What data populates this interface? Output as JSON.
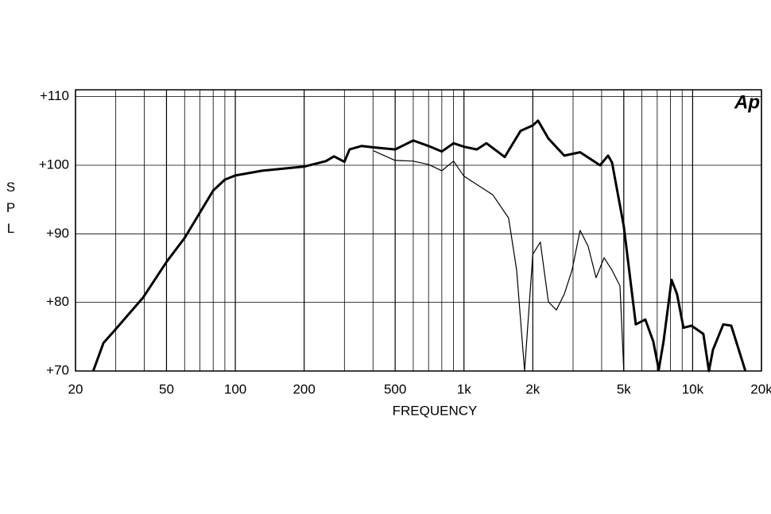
{
  "chart_data": {
    "type": "line",
    "xlabel": "FREQUENCY",
    "ylabel": "SPL",
    "logo": "Ap",
    "xscale": "log",
    "grid": true,
    "xlim": [
      20,
      20000
    ],
    "ylim": [
      70,
      111
    ],
    "xticks": [
      20,
      50,
      100,
      200,
      500,
      {
        "value": 1000,
        "label": "1k"
      },
      {
        "value": 2000,
        "label": "2k"
      },
      {
        "value": 5000,
        "label": "5k"
      },
      {
        "value": 10000,
        "label": "10k"
      },
      {
        "value": 20000,
        "label": "20k"
      }
    ],
    "minor_xticks": [
      30,
      40,
      60,
      70,
      80,
      90,
      300,
      400,
      600,
      700,
      800,
      900,
      3000,
      4000,
      6000,
      7000,
      8000,
      9000
    ],
    "yticks": [
      {
        "value": 70,
        "label": "+70"
      },
      {
        "value": 80,
        "label": "+80"
      },
      {
        "value": 90,
        "label": "+90"
      },
      {
        "value": 100,
        "label": "+100"
      },
      {
        "value": 110,
        "label": "+110"
      }
    ],
    "series": [
      {
        "color": "#000000",
        "width": 3,
        "x": [
          23.9,
          26.5,
          29.8,
          33.6,
          39.5,
          50,
          60,
          70,
          80,
          90,
          100,
          131,
          200,
          249,
          270,
          300,
          316,
          356,
          402,
          500,
          600,
          700,
          800,
          900,
          1000,
          1138,
          1254,
          1507,
          1768,
          2000,
          2108,
          2340,
          2746,
          3220,
          3937,
          4266,
          4440,
          5000,
          5640,
          6210,
          6730,
          7110,
          7460,
          8090,
          8550,
          9120,
          9890,
          11140,
          11780,
          12270,
          13620,
          14760,
          17020
        ],
        "values": [
          70,
          74.1,
          76.0,
          78.0,
          80.7,
          85.9,
          89.4,
          93.1,
          96.3,
          97.9,
          98.5,
          99.2,
          99.8,
          100.6,
          101.3,
          100.5,
          102.3,
          102.8,
          102.6,
          102.3,
          103.6,
          102.8,
          102.0,
          103.2,
          102.7,
          102.3,
          103.2,
          101.2,
          105.0,
          105.8,
          106.5,
          103.9,
          101.4,
          101.9,
          100.0,
          101.4,
          100.4,
          91.1,
          76.8,
          77.5,
          74.3,
          70.2,
          74.3,
          83.3,
          81.2,
          76.3,
          76.6,
          75.4,
          70,
          73.1,
          76.8,
          76.6,
          70
        ]
      },
      {
        "color": "#000000",
        "width": 1.2,
        "x": [
          402,
          500,
          600,
          700,
          800,
          900,
          1000,
          1138,
          1336,
          1568,
          1699,
          1841,
          2000,
          2158,
          2340,
          2536,
          2746,
          2970,
          3220,
          3490,
          3780,
          4100,
          4440,
          4810,
          5000
        ],
        "values": [
          102.1,
          100.7,
          100.6,
          100.1,
          99.2,
          100.6,
          98.4,
          97.2,
          95.7,
          92.3,
          84.7,
          70,
          87.0,
          88.8,
          80.1,
          78.9,
          81.2,
          84.7,
          90.5,
          88.2,
          83.6,
          86.5,
          84.7,
          82.4,
          70
        ]
      }
    ]
  }
}
